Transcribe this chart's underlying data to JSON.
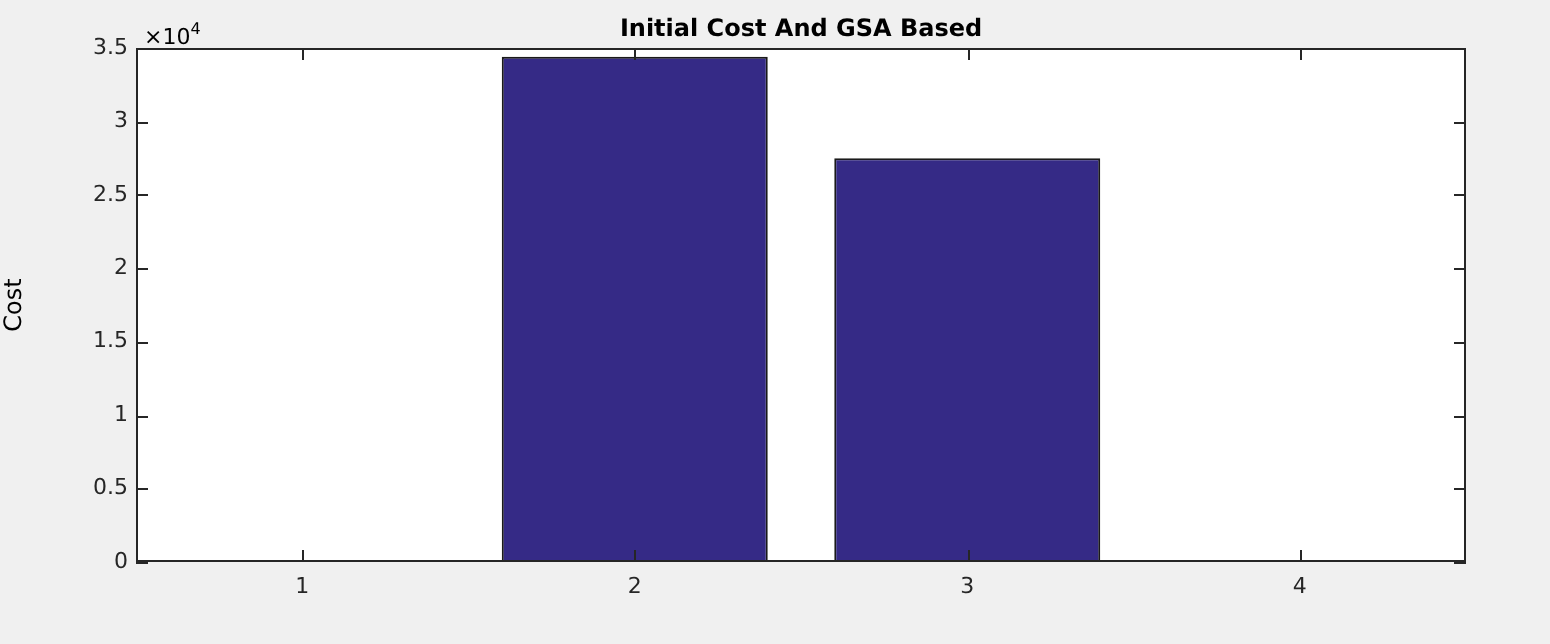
{
  "chart_data": {
    "type": "bar",
    "title": "Initial Cost And GSA Based",
    "ylabel": "Cost",
    "categories": [
      "1",
      "2",
      "3",
      "4"
    ],
    "values": [
      0,
      3.44,
      2.75,
      0
    ],
    "color": "#352a86",
    "ylim": [
      0,
      3.5
    ],
    "yticks": [
      0,
      0.5,
      1,
      1.5,
      2,
      2.5,
      3,
      3.5
    ],
    "annotations": [
      "×10$^{4}$"
    ],
    "grid": false,
    "legend": false
  }
}
